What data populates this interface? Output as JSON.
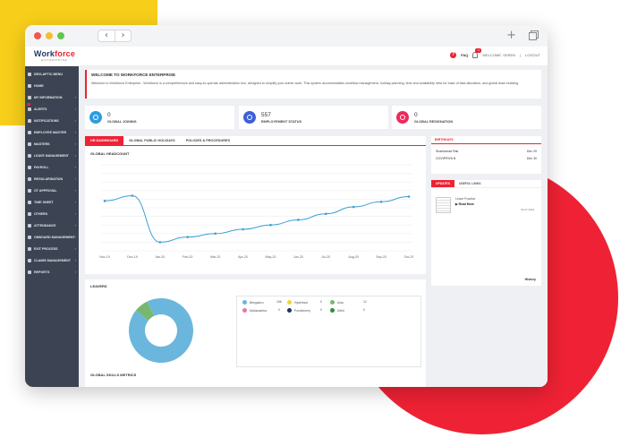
{
  "header": {
    "logo_main": "Work",
    "logo_accent": "force",
    "logo_sub": "ENTERPRISE",
    "faq": "FAQ",
    "notif_count": "3",
    "welcome_user": "WELCOME, SEREN",
    "logout": "LOGOUT"
  },
  "sidebar": {
    "items": [
      {
        "label": "DEVLAPTIC MENU"
      },
      {
        "label": "HOME"
      },
      {
        "label": "MY INFORMATION"
      },
      {
        "label": "ALERTS"
      },
      {
        "label": "NOTIFICATIONS"
      },
      {
        "label": "EMPLOYEE MASTER"
      },
      {
        "label": "MASTERS"
      },
      {
        "label": "LEAVE MANAGEMENT"
      },
      {
        "label": "PAYROLL"
      },
      {
        "label": "REGULARISATION"
      },
      {
        "label": "OT APPROVAL"
      },
      {
        "label": "TIME SHEET"
      },
      {
        "label": "OTHERS"
      },
      {
        "label": "ATTENDANCE"
      },
      {
        "label": "ONBOARD MANAGEMENT"
      },
      {
        "label": "EXIT PROCESS"
      },
      {
        "label": "CLAIMS MANAGEMENT"
      },
      {
        "label": "REPORTS"
      }
    ]
  },
  "welcome": {
    "title": "WELCOME TO WORKFORCE ENTERPRISE",
    "text": "Welcome to Workforce Enterprise - Workforce is a comprehensive and easy-to-operate administration tool, designed to simplify your admin work. This system accommodates workflow management, holiday planning, time and availability view for ease of task allocation, and global team building."
  },
  "cards": [
    {
      "value": "0",
      "label": "GLOBAL JOINING",
      "color": "#2f9be0"
    },
    {
      "value": "557",
      "label": "EMPLOYEMENT STATUS",
      "color": "#3f5fd7"
    },
    {
      "value": "0",
      "label": "GLOBAL RESIGNATION",
      "color": "#ee2a5a"
    }
  ],
  "tabs": [
    "HR DASHBOARD",
    "GLOBAL PUBLIC HOLIDAYS",
    "POLICIES & PROCEDURES"
  ],
  "headcount": {
    "title": "GLOBAL HEADCOUNT"
  },
  "chart_data": {
    "type": "line",
    "title": "GLOBAL HEADCOUNT",
    "categories": [
      "Nov-19",
      "Dec-19",
      "Jan-20",
      "Feb-20",
      "Mar-20",
      "Apr-20",
      "May-20",
      "Jun-20",
      "Jul-20",
      "Aug-20",
      "Sep-20",
      "Oct-20"
    ],
    "values": [
      58,
      64,
      10,
      16,
      20,
      25,
      30,
      36,
      43,
      51,
      57,
      63
    ],
    "ylim": [
      0,
      100
    ],
    "color": "#3c9fd3",
    "grid": true
  },
  "leavers": {
    "title": "LEAVERS",
    "legend": [
      {
        "name": "Bengaluru",
        "value": "156",
        "color": "#6bb6dc"
      },
      {
        "name": "Hyderbad",
        "value": "0",
        "color": "#f2d33a"
      },
      {
        "name": "Asia",
        "value": "12",
        "color": "#77b86e"
      },
      {
        "name": "Maharashtra",
        "value": "0",
        "color": "#e07aa8"
      },
      {
        "name": "Pondicherry",
        "value": "0",
        "color": "#1f3560"
      },
      {
        "name": "Delhi",
        "value": "0",
        "color": "#2f8c3c"
      }
    ],
    "donut": [
      {
        "name": "Bengaluru",
        "value": 156,
        "color": "#6bb6dc"
      },
      {
        "name": "Asia",
        "value": 12,
        "color": "#77b86e"
      }
    ]
  },
  "skills": {
    "title": "GLOBAL SKILLS METRICS"
  },
  "birthdays": {
    "title": "BIRTHDAYS",
    "rows": [
      {
        "name": "Shankarrad Rak",
        "date": "Dec 29"
      },
      {
        "name": "GOVIPRIYA N",
        "date": "Dec 30"
      }
    ]
  },
  "updates": {
    "tabs": [
      "UPDATES",
      "USEFUL LINKS"
    ],
    "item_title": "Leave Practice",
    "item_link": "Read More",
    "item_date": "30.07.2019",
    "history": "History"
  }
}
